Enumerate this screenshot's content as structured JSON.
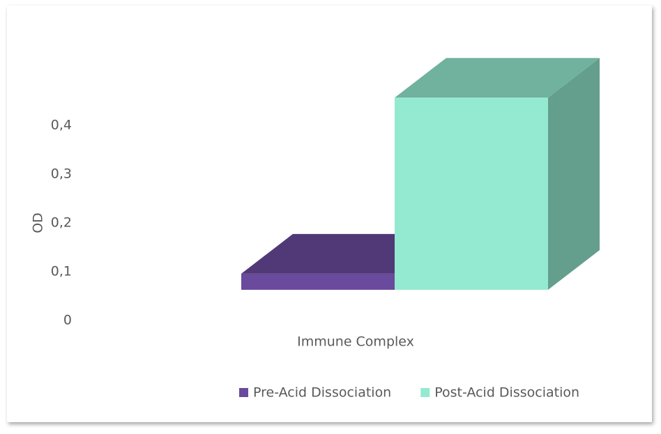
{
  "chart_data": {
    "type": "bar3d",
    "y_label": "OD",
    "categories": [
      "Immune Complex"
    ],
    "series": [
      {
        "name": "Pre-Acid Dissociation",
        "color": "#6a4a9c",
        "values": [
          0.033
        ]
      },
      {
        "name": "Post-Acid Dissociation",
        "color": "#93ead0",
        "values": [
          0.394
        ]
      }
    ],
    "ylim": [
      0,
      0.4
    ],
    "yticks": [
      0,
      {
        "value": 0.1,
        "label": "0,1"
      },
      {
        "value": 0.2,
        "label": "0,2"
      },
      {
        "value": 0.3,
        "label": "0,3"
      },
      {
        "value": 0.4,
        "label": "0,4"
      }
    ],
    "legend": "bottom"
  }
}
